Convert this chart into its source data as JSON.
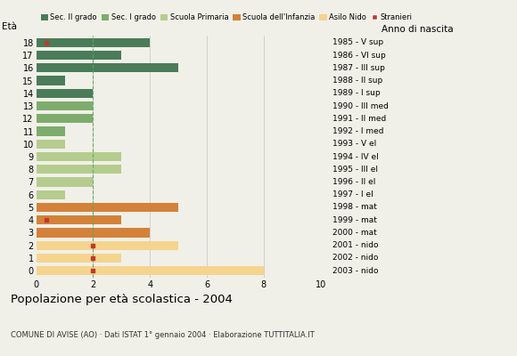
{
  "ages": [
    18,
    17,
    16,
    15,
    14,
    13,
    12,
    11,
    10,
    9,
    8,
    7,
    6,
    5,
    4,
    3,
    2,
    1,
    0
  ],
  "anno_nascita": [
    "1985 - V sup",
    "1986 - VI sup",
    "1987 - III sup",
    "1988 - II sup",
    "1989 - I sup",
    "1990 - III med",
    "1991 - II med",
    "1992 - I med",
    "1993 - V el",
    "1994 - IV el",
    "1995 - III el",
    "1996 - II el",
    "1997 - I el",
    "1998 - mat",
    "1999 - mat",
    "2000 - mat",
    "2001 - nido",
    "2002 - nido",
    "2003 - nido"
  ],
  "values": [
    4,
    3,
    5,
    1,
    2,
    2,
    2,
    1,
    1,
    3,
    3,
    2,
    1,
    5,
    3,
    4,
    5,
    3,
    8
  ],
  "stranieri_x": [
    0.35,
    null,
    null,
    null,
    null,
    null,
    null,
    null,
    null,
    null,
    null,
    null,
    null,
    null,
    0.35,
    null,
    2.0,
    2.0,
    2.0
  ],
  "colors": [
    "#4a7c59",
    "#4a7c59",
    "#4a7c59",
    "#4a7c59",
    "#4a7c59",
    "#7dac6d",
    "#7dac6d",
    "#7dac6d",
    "#b5cc8e",
    "#b5cc8e",
    "#b5cc8e",
    "#b5cc8e",
    "#b5cc8e",
    "#d4813a",
    "#d4813a",
    "#d4813a",
    "#f5d48e",
    "#f5d48e",
    "#f5d48e"
  ],
  "bar_height": 0.72,
  "xlim": [
    0,
    10
  ],
  "xlabel_ticks": [
    0,
    2,
    4,
    6,
    8,
    10
  ],
  "title": "Popolazione per età scolastica - 2004",
  "subtitle": "COMUNE DI AVISE (AO) · Dati ISTAT 1° gennaio 2004 · Elaborazione TUTTITALIA.IT",
  "legend_labels": [
    "Sec. II grado",
    "Sec. I grado",
    "Scuola Primaria",
    "Scuola dell'Infanzia",
    "Asilo Nido",
    "Stranieri"
  ],
  "legend_colors": [
    "#4a7c59",
    "#7dac6d",
    "#b5cc8e",
    "#d4813a",
    "#f5d48e",
    "#c0392b"
  ],
  "dashed_line_x": 2,
  "background_color": "#f0f0e8",
  "grid_color": "#cccccc",
  "stranieri_color": "#c0392b",
  "ylabel": "Età",
  "right_label": "Anno di nascita"
}
